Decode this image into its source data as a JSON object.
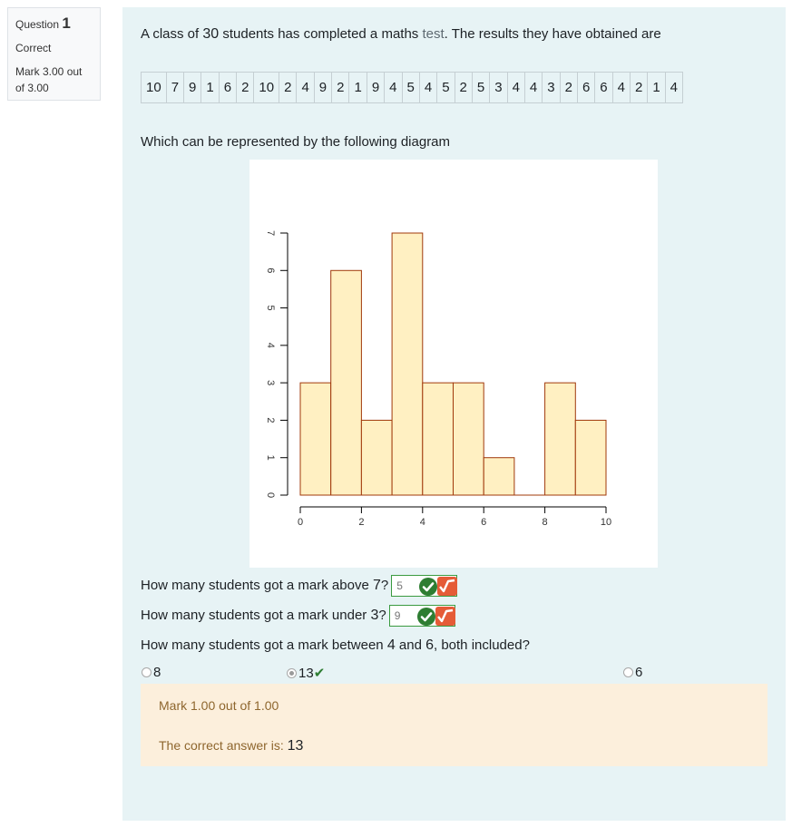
{
  "info": {
    "question_word": "Question",
    "question_number": "1",
    "state": "Correct",
    "grade": "Mark 3.00 out of 3.00"
  },
  "question": {
    "intro_a": "A class of ",
    "intro_num": "30",
    "intro_b": " students has completed a maths ",
    "intro_link": "test",
    "intro_c": ". The results they have obtained are",
    "results": [
      "10",
      "7",
      "9",
      "1",
      "6",
      "2",
      "10",
      "2",
      "4",
      "9",
      "2",
      "1",
      "9",
      "4",
      "5",
      "4",
      "5",
      "2",
      "5",
      "3",
      "4",
      "4",
      "3",
      "2",
      "6",
      "6",
      "4",
      "2",
      "1",
      "4"
    ],
    "diagram_text": "Which can be represented by the following diagram",
    "q1_a": "How many students got a mark above ",
    "q1_num": "7",
    "q1_b": "?",
    "q1_answer": "5",
    "q2_a": "How many students got a mark under ",
    "q2_num": "3",
    "q2_b": "?",
    "q2_answer": "9",
    "q3_a": "How many students got a mark between ",
    "q3_num1": "4",
    "q3_mid": " and ",
    "q3_num2": "6",
    "q3_b": ", both included?",
    "options": [
      {
        "label": "8",
        "checked": false
      },
      {
        "label": "13",
        "checked": true
      },
      {
        "label": "6",
        "checked": false
      }
    ],
    "correct_mark": "✔"
  },
  "feedback": {
    "mark": "Mark 1.00 out of 1.00",
    "correct_prefix": "The correct answer is: ",
    "correct_value": "13"
  },
  "colors": {
    "bar_fill": "#fff0c2",
    "bar_stroke": "#a0380a",
    "ok_green": "#2e7d32",
    "feedback_orange": "#e55b37"
  },
  "chart_data": {
    "type": "bar",
    "bins": [
      [
        0,
        1
      ],
      [
        1,
        2
      ],
      [
        2,
        3
      ],
      [
        3,
        4
      ],
      [
        4,
        5
      ],
      [
        5,
        6
      ],
      [
        6,
        7
      ],
      [
        7,
        8
      ],
      [
        8,
        9
      ],
      [
        9,
        10
      ]
    ],
    "values": [
      3,
      6,
      2,
      7,
      3,
      3,
      1,
      0,
      3,
      2
    ],
    "xlim": [
      0,
      10
    ],
    "ylim": [
      0,
      7
    ],
    "xticks": [
      0,
      2,
      4,
      6,
      8,
      10
    ],
    "yticks": [
      0,
      1,
      2,
      3,
      4,
      5,
      6,
      7
    ]
  }
}
